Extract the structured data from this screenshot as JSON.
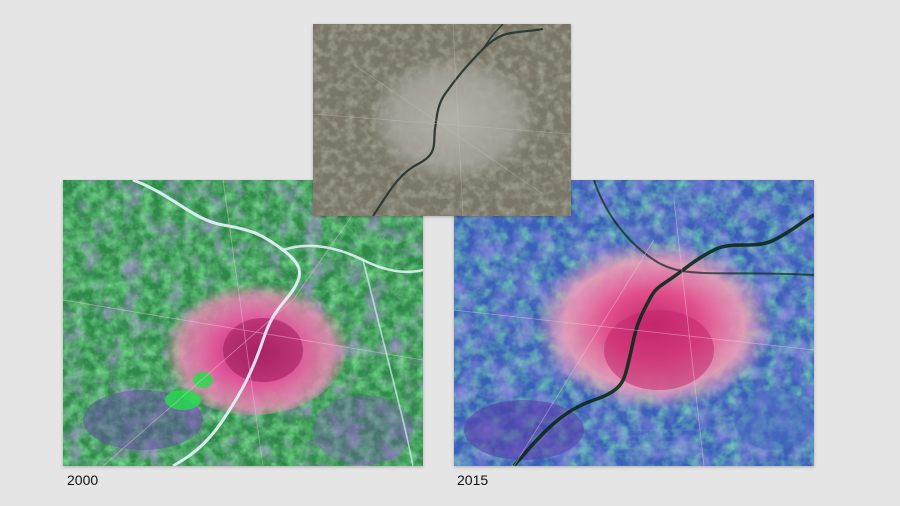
{
  "images": [
    {
      "year": "2000",
      "image_type": "false-color satellite image",
      "colors": {
        "base": "#2f8a4a",
        "urban": "#d8427e",
        "urban_light": "#f08ab6",
        "vegetation": "#2fd84f",
        "water_river": "#e8f4ff",
        "purple": "#6a3fb0"
      }
    },
    {
      "year": "2015",
      "image_type": "false-color satellite image",
      "colors": {
        "base": "#3b5fb8",
        "urban": "#d43a7a",
        "urban_light": "#f4a0b8",
        "vegetation": "#2ec46a",
        "water_river": "#0a2a1a",
        "purple": "#5a3aa8"
      }
    },
    {
      "image_type": "true-color satellite image",
      "colors": {
        "base": "#7a7668",
        "urban": "#a8a79e",
        "river": "#2f3a34"
      }
    }
  ],
  "captions": {
    "left": "2000",
    "right": "2015"
  }
}
